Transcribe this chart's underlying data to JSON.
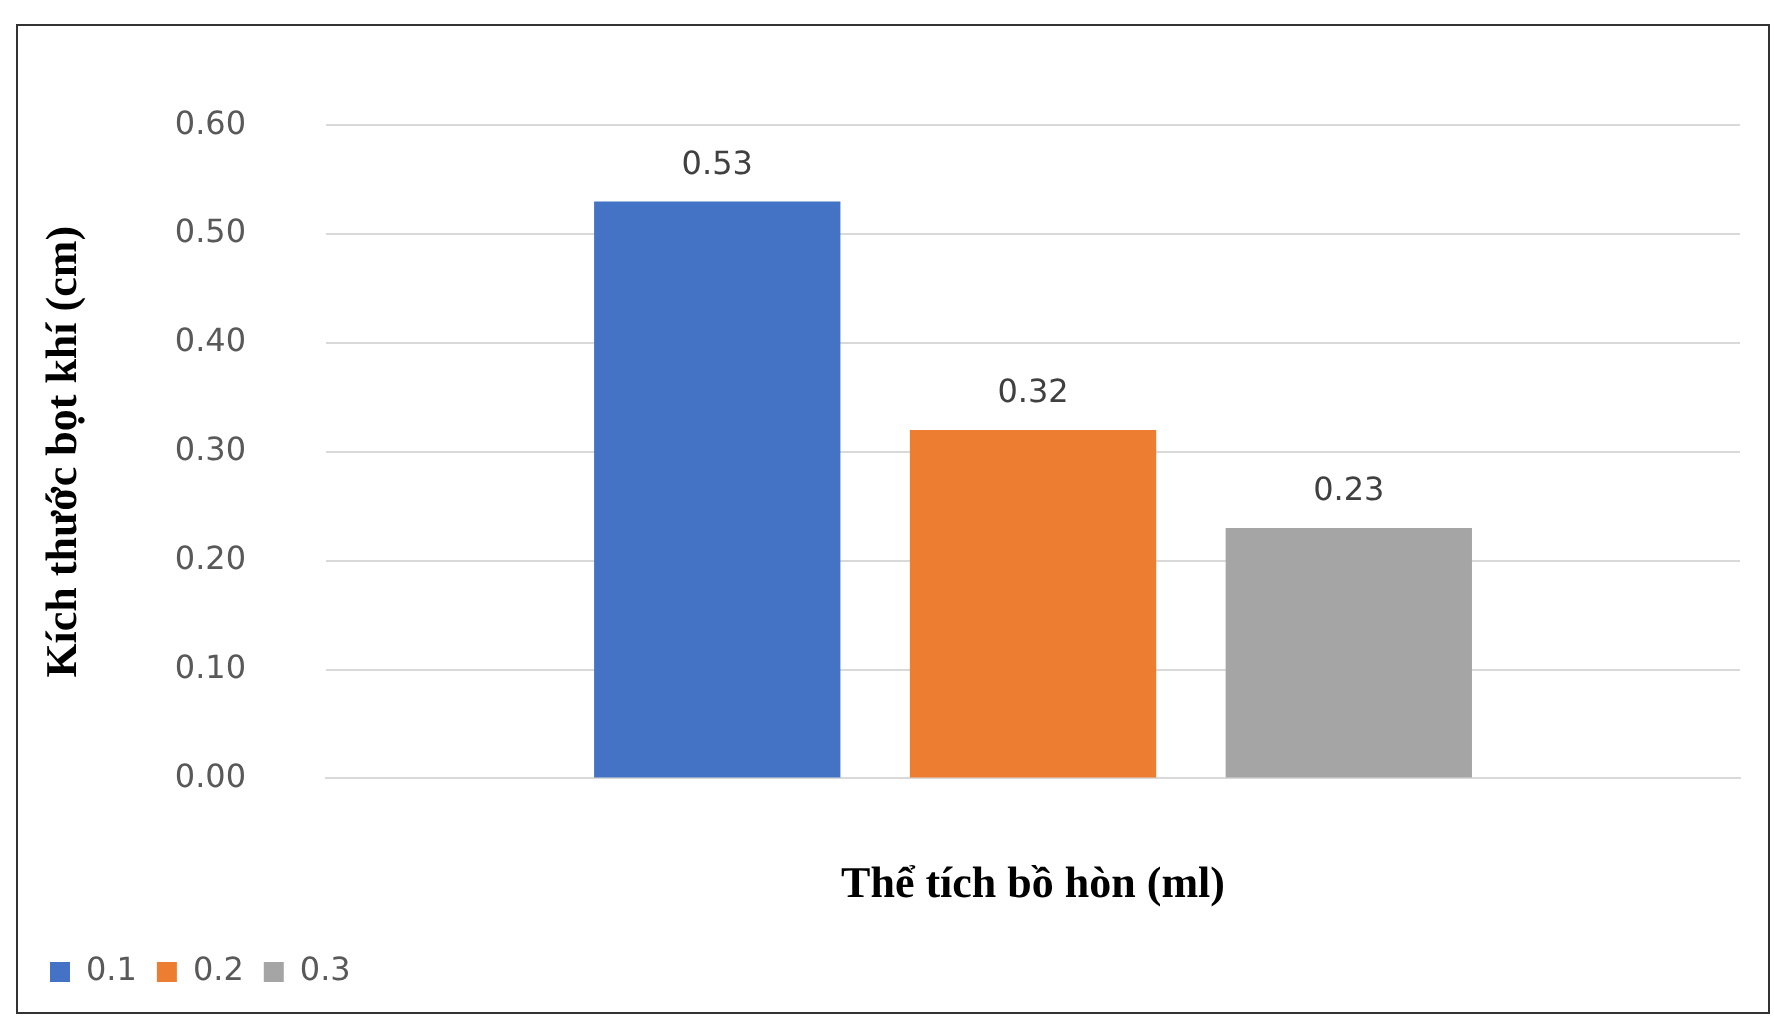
{
  "chart_data": {
    "type": "bar",
    "xlabel": "Thể tích bồ hòn (ml)",
    "ylabel": "Kích thước bọt khí (cm)",
    "categories": [
      null
    ],
    "series": [
      {
        "name": "0.1",
        "color": "#4472c4",
        "values": [
          0.53
        ]
      },
      {
        "name": "0.2",
        "color": "#ed7d31",
        "values": [
          0.32
        ]
      },
      {
        "name": "0.3",
        "color": "#a5a5a5",
        "values": [
          0.23
        ]
      }
    ],
    "ylim": [
      0,
      0.6
    ],
    "yticks": [
      {
        "value": 0,
        "label": "0.00"
      },
      {
        "value": 0.1,
        "label": "0.10"
      },
      {
        "value": 0.2,
        "label": "0.20"
      },
      {
        "value": 0.3,
        "label": "0.30"
      },
      {
        "value": 0.4,
        "label": "0.40"
      },
      {
        "value": 0.5,
        "label": "0.50"
      },
      {
        "value": 0.6,
        "label": "0.60"
      }
    ],
    "grid": "y",
    "legend": "bottom left",
    "data_labels": true
  }
}
